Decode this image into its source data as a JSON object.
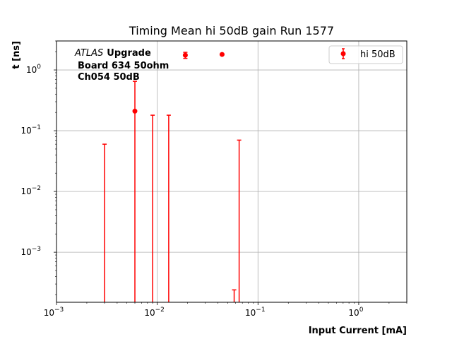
{
  "chart_data": {
    "type": "scatter",
    "title": "Timing Mean hi 50dB gain Run 1577",
    "xlabel": "Input Current [mA]",
    "ylabel": "t [ns]",
    "xscale": "log",
    "yscale": "log",
    "xlim": [
      0.001,
      3
    ],
    "ylim": [
      0.00015,
      3
    ],
    "grid": true,
    "x_major_ticks": [
      0.001,
      0.01,
      0.1,
      1
    ],
    "y_major_ticks": [
      0.001,
      0.01,
      0.1,
      1
    ],
    "x_tick_labels": [
      {
        "base": "10",
        "exp": "−3"
      },
      {
        "base": "10",
        "exp": "−2"
      },
      {
        "base": "10",
        "exp": "−1"
      },
      {
        "base": "10",
        "exp": "0"
      }
    ],
    "y_tick_labels": [
      {
        "base": "10",
        "exp": "−3"
      },
      {
        "base": "10",
        "exp": "−2"
      },
      {
        "base": "10",
        "exp": "−1"
      },
      {
        "base": "10",
        "exp": "0"
      }
    ],
    "annotation": {
      "atlas": "ATLAS",
      "upgrade": "Upgrade",
      "line2": "Board 634 50ohm",
      "line3": "Ch054 50dB"
    },
    "legend": {
      "position": "top-right",
      "label": "hi 50dB"
    },
    "color": "#ff0000",
    "series": [
      {
        "name": "hi 50dB",
        "points": [
          {
            "x": 0.003,
            "y": null,
            "err_top": 0.06
          },
          {
            "x": 0.006,
            "y": 0.21,
            "err_top": 0.65
          },
          {
            "x": 0.009,
            "y": null,
            "err_top": 0.18
          },
          {
            "x": 0.013,
            "y": null,
            "err_top": 0.18
          },
          {
            "x": 0.019,
            "y": 1.75,
            "err_low": 1.55,
            "err_top": 1.95
          },
          {
            "x": 0.044,
            "y": 1.8,
            "err_low": 1.8,
            "err_top": 1.8
          },
          {
            "x": 0.058,
            "y": null,
            "err_top": 0.00024
          },
          {
            "x": 0.065,
            "y": null,
            "err_top": 0.07
          }
        ]
      }
    ]
  }
}
